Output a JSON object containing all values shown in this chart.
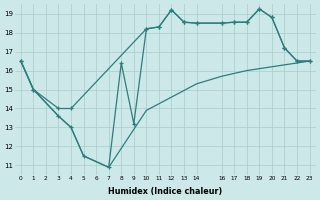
{
  "xlabel": "Humidex (Indice chaleur)",
  "bg_color": "#cce8e8",
  "grid_color": "#aacccc",
  "line_color": "#2e7d7d",
  "xlim": [
    -0.5,
    23.5
  ],
  "ylim": [
    10.5,
    19.5
  ],
  "yticks": [
    11,
    12,
    13,
    14,
    15,
    16,
    17,
    18,
    19
  ],
  "xticks": [
    0,
    1,
    2,
    3,
    4,
    5,
    6,
    7,
    8,
    9,
    10,
    11,
    12,
    13,
    14,
    16,
    17,
    18,
    19,
    20,
    21,
    22,
    23
  ],
  "curve1_x": [
    0,
    1,
    3,
    4,
    5,
    7,
    8,
    9,
    10,
    11,
    12,
    13,
    14,
    16,
    17,
    18,
    19,
    20,
    21,
    22,
    23
  ],
  "curve1_y": [
    16.5,
    15.0,
    13.6,
    13.0,
    11.5,
    10.9,
    16.4,
    13.2,
    18.2,
    18.3,
    19.2,
    18.55,
    18.5,
    18.5,
    18.55,
    18.55,
    19.25,
    18.8,
    17.2,
    16.5,
    16.5
  ],
  "curve2_x": [
    0,
    1,
    3,
    4,
    10,
    11,
    12,
    13,
    14,
    16,
    17,
    18,
    19,
    20,
    21,
    22,
    23
  ],
  "curve2_y": [
    16.5,
    15.0,
    14.0,
    14.0,
    18.2,
    18.3,
    19.2,
    18.55,
    18.5,
    18.5,
    18.55,
    18.55,
    19.25,
    18.8,
    17.2,
    16.5,
    16.5
  ],
  "curve3_x": [
    0,
    1,
    3,
    4,
    5,
    7,
    10,
    14,
    16,
    17,
    18,
    19,
    20,
    21,
    22,
    23
  ],
  "curve3_y": [
    16.5,
    15.0,
    13.6,
    13.0,
    11.5,
    10.9,
    13.9,
    15.3,
    15.7,
    15.85,
    16.0,
    16.1,
    16.2,
    16.3,
    16.4,
    16.5
  ]
}
